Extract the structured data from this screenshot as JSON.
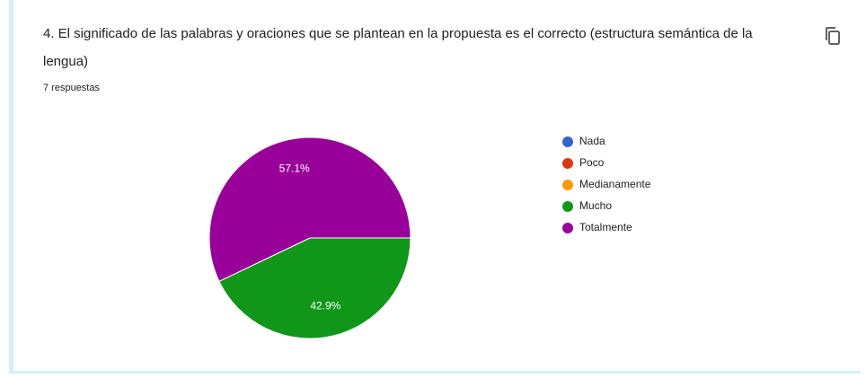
{
  "chart_data": {
    "type": "pie",
    "title": "4. El significado de las palabras y oraciones que se plantean en la propuesta es el correcto (estructura semántica de la lengua)",
    "subtitle": "7 respuestas",
    "categories": [
      "Nada",
      "Poco",
      "Medianamente",
      "Mucho",
      "Totalmente"
    ],
    "values": [
      0,
      0,
      0,
      42.9,
      57.1
    ],
    "value_labels": [
      null,
      null,
      null,
      "42.9%",
      "57.1%"
    ],
    "colors": [
      "#3366cc",
      "#dc3912",
      "#ff9900",
      "#109618",
      "#990099"
    ],
    "legend": "right"
  }
}
